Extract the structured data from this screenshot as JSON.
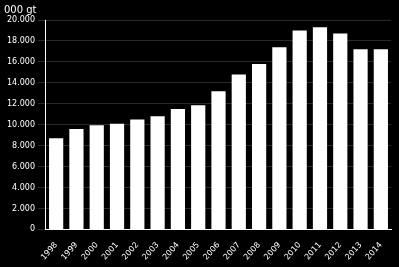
{
  "chart_data": {
    "type": "bar",
    "ylabel": "000 gt",
    "categories": [
      "1998",
      "1999",
      "2000",
      "2001",
      "2002",
      "2003",
      "2004",
      "2005",
      "2006",
      "2007",
      "2008",
      "2009",
      "2010",
      "2011",
      "2012",
      "2013",
      "2014"
    ],
    "values": [
      8700,
      9600,
      9950,
      10100,
      10500,
      10800,
      11500,
      11850,
      13200,
      14800,
      15800,
      17400,
      19000,
      19300,
      18700,
      17200,
      17200
    ],
    "color": "#ffffff",
    "ylim": [
      0,
      20000
    ],
    "yticks": [
      0,
      {
        "value": 2000,
        "label": "2.000"
      },
      {
        "value": 4000,
        "label": "4.000"
      },
      {
        "value": 6000,
        "label": "6.000"
      },
      {
        "value": 8000,
        "label": "8.000"
      },
      {
        "value": 10000,
        "label": "10.000"
      },
      {
        "value": 12000,
        "label": "12.000"
      },
      {
        "value": 14000,
        "label": "14.000"
      },
      {
        "value": 16000,
        "label": "16.000"
      },
      {
        "value": 18000,
        "label": "18.000"
      },
      {
        "value": 20000,
        "label": "20.000"
      }
    ],
    "grid": true
  }
}
